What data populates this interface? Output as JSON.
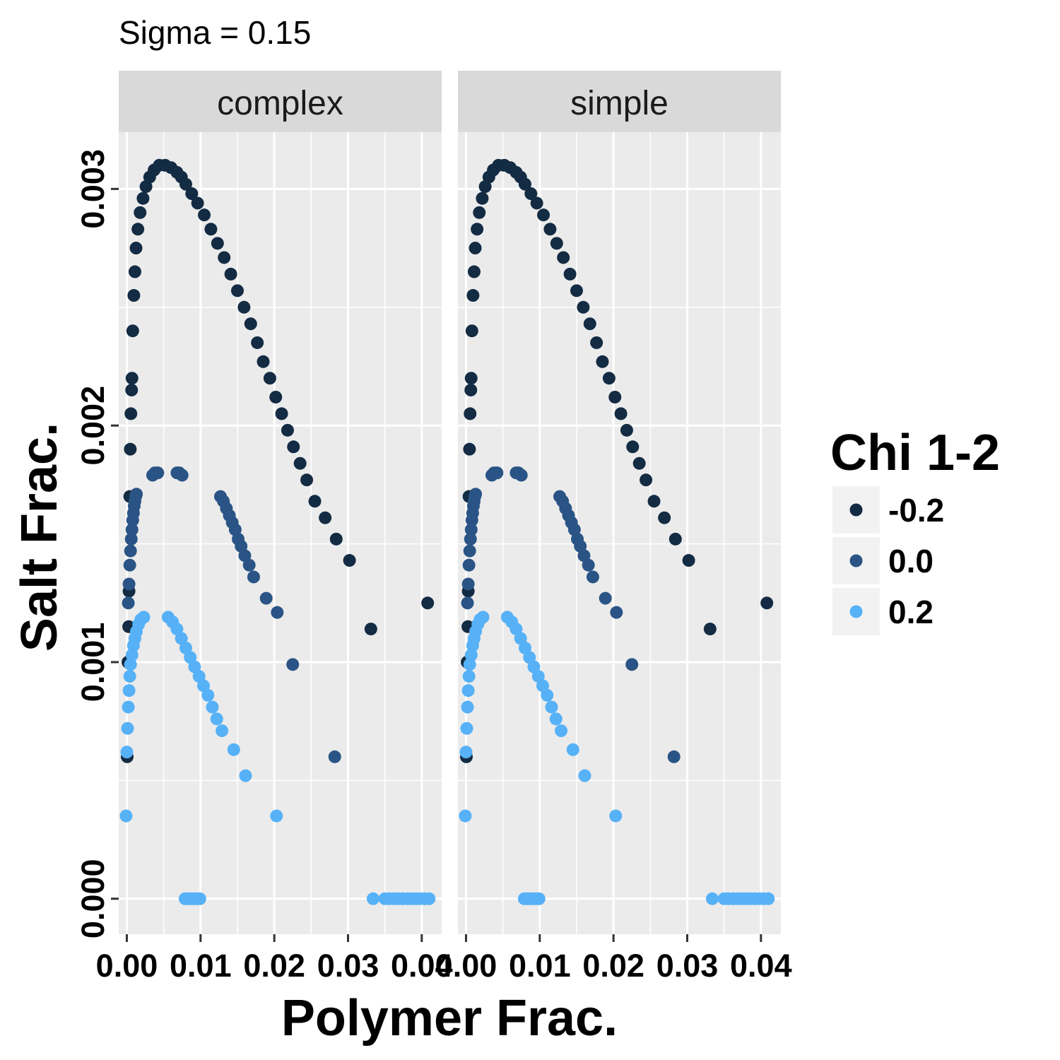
{
  "chart_data": {
    "type": "scatter",
    "title": "Sigma = 0.15",
    "xlabel": "Polymer Frac.",
    "ylabel": "Salt Frac.",
    "xlim": [
      -0.0011,
      0.0427
    ],
    "ylim": [
      -0.00015,
      0.00324
    ],
    "x_ticks": [
      0.0,
      0.01,
      0.02,
      0.03,
      0.04
    ],
    "x_tick_labels": [
      "0.00",
      "0.01",
      "0.02",
      "0.03",
      "0.04"
    ],
    "y_ticks": [
      0.0,
      0.001,
      0.002,
      0.003
    ],
    "y_tick_labels": [
      "0.000",
      "0.001",
      "0.002",
      "0.003"
    ],
    "grid": true,
    "facets": [
      "complex",
      "simple"
    ],
    "legend": {
      "title": "Chi 1-2",
      "position": "right",
      "entries": [
        {
          "label": "-0.2",
          "color": "#132B43"
        },
        {
          "label": "0.0",
          "color": "#2A5485"
        },
        {
          "label": "0.2",
          "color": "#56B1F7"
        }
      ]
    },
    "series": [
      {
        "chi": "-0.2",
        "color": "#132B43",
        "x": [
          5e-05,
          0.00015,
          0.00025,
          0.0003,
          0.0004,
          0.00047,
          0.00055,
          0.00065,
          0.0007,
          0.0008,
          0.00095,
          0.0011,
          0.00125,
          0.0015,
          0.0018,
          0.0022,
          0.0026,
          0.0031,
          0.0037,
          0.0044,
          0.0052,
          0.006,
          0.0068,
          0.0074,
          0.008,
          0.0088,
          0.0096,
          0.0105,
          0.0114,
          0.0123,
          0.0132,
          0.0141,
          0.015,
          0.0159,
          0.0168,
          0.0177,
          0.0185,
          0.0194,
          0.0202,
          0.021,
          0.0218,
          0.0226,
          0.0235,
          0.0244,
          0.0255,
          0.0269,
          0.0284,
          0.0302,
          0.0331,
          0.0408
        ],
        "y": [
          0.0006,
          0.001,
          0.00115,
          0.0013,
          0.0017,
          0.0019,
          0.00205,
          0.00215,
          0.0022,
          0.0024,
          0.00255,
          0.00265,
          0.00275,
          0.00283,
          0.0029,
          0.00296,
          0.00301,
          0.00305,
          0.00308,
          0.0031,
          0.0031,
          0.00309,
          0.00307,
          0.00305,
          0.00302,
          0.00298,
          0.00294,
          0.00289,
          0.00283,
          0.00277,
          0.00271,
          0.00264,
          0.00257,
          0.0025,
          0.00243,
          0.00235,
          0.00227,
          0.0022,
          0.00212,
          0.00205,
          0.00198,
          0.00191,
          0.00184,
          0.00177,
          0.00168,
          0.00161,
          0.00152,
          0.00143,
          0.00114,
          0.00125
        ]
      },
      {
        "chi": "0.0",
        "color": "#2A5485",
        "x": [
          0.0002,
          0.0003,
          0.0004,
          0.0005,
          0.0006,
          0.0007,
          0.0008,
          0.0009,
          0.001,
          0.0011,
          0.0012,
          0.0013,
          0.0035,
          0.0038,
          0.0042,
          0.0068,
          0.0071,
          0.0075,
          0.0127,
          0.0131,
          0.0135,
          0.0139,
          0.0143,
          0.0147,
          0.0151,
          0.0155,
          0.016,
          0.0166,
          0.0172,
          0.0189,
          0.0204,
          0.0225,
          0.0282
        ],
        "y": [
          0.00125,
          0.00133,
          0.00141,
          0.00147,
          0.00152,
          0.00156,
          0.0016,
          0.00163,
          0.00166,
          0.00168,
          0.0017,
          0.00171,
          0.00179,
          0.0018,
          0.0018,
          0.0018,
          0.0018,
          0.00179,
          0.0017,
          0.00168,
          0.00165,
          0.00162,
          0.00159,
          0.00156,
          0.00152,
          0.00149,
          0.00145,
          0.00141,
          0.00136,
          0.00127,
          0.00121,
          0.00099,
          0.0006
        ]
      },
      {
        "chi": "0.2",
        "color": "#56B1F7",
        "x": [
          -0.0001,
          0.0,
          0.0001,
          0.0002,
          0.0003,
          0.0004,
          0.0005,
          0.0007,
          0.0009,
          0.0011,
          0.0013,
          0.0016,
          0.0019,
          0.0023,
          0.0056,
          0.0062,
          0.0068,
          0.0074,
          0.008,
          0.0086,
          0.0092,
          0.0098,
          0.0104,
          0.011,
          0.0116,
          0.0122,
          0.0129,
          0.0145,
          0.0161,
          0.0203,
          0.0079,
          0.0083,
          0.0087,
          0.0091,
          0.0095,
          0.0099,
          0.0334,
          0.035,
          0.0356,
          0.0362,
          0.0368,
          0.0374,
          0.038,
          0.0386,
          0.0392,
          0.0398,
          0.0404,
          0.041
        ],
        "y": [
          0.00035,
          0.00062,
          0.00072,
          0.00081,
          0.00088,
          0.00094,
          0.00099,
          0.00103,
          0.00107,
          0.0011,
          0.00113,
          0.00116,
          0.00118,
          0.00119,
          0.00119,
          0.00117,
          0.00114,
          0.0011,
          0.00106,
          0.00102,
          0.00098,
          0.00094,
          0.0009,
          0.00086,
          0.00081,
          0.00076,
          0.00071,
          0.00063,
          0.00052,
          0.00035,
          0.0,
          0.0,
          0.0,
          0.0,
          0.0,
          0.0,
          0.0,
          0.0,
          0.0,
          0.0,
          0.0,
          0.0,
          0.0,
          0.0,
          0.0,
          0.0,
          0.0,
          0.0
        ]
      }
    ]
  }
}
